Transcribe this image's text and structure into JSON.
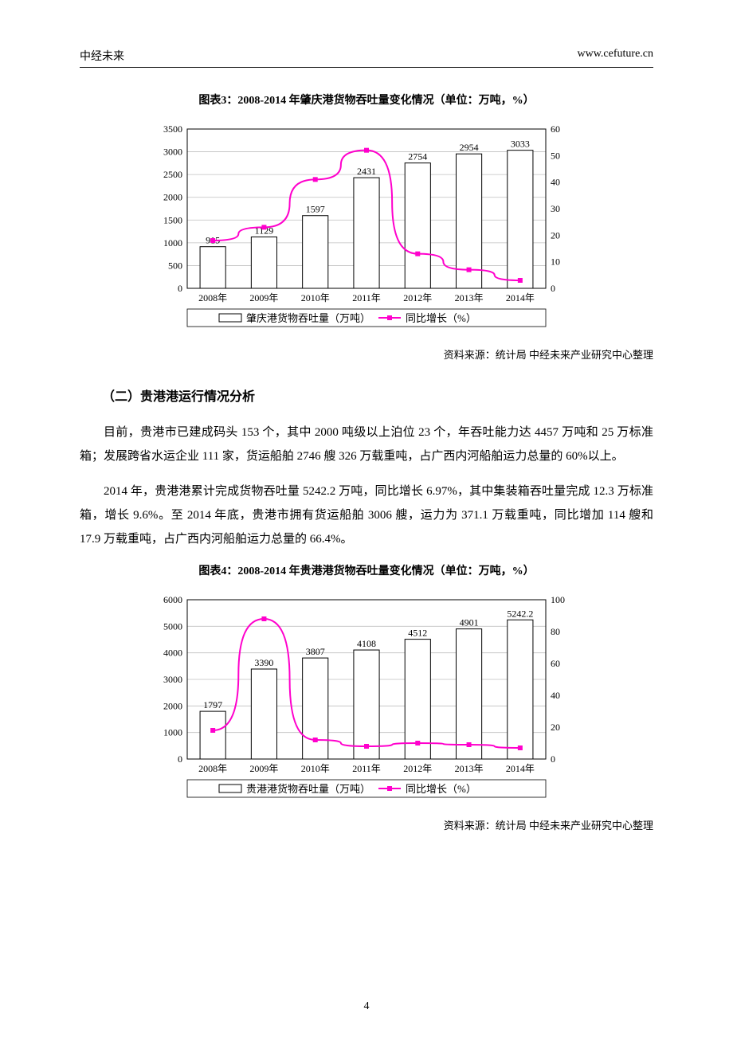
{
  "header": {
    "left": "中经未来",
    "right": "www.cefuture.cn"
  },
  "chart3": {
    "title": "图表3：2008-2014 年肇庆港货物吞吐量变化情况（单位：万吨，%）",
    "type": "bar+line",
    "categories": [
      "2008年",
      "2009年",
      "2010年",
      "2011年",
      "2012年",
      "2013年",
      "2014年"
    ],
    "bar_values": [
      915,
      1129,
      1597,
      2431,
      2754,
      2954,
      3033
    ],
    "line_values": [
      18,
      23,
      41,
      52,
      13,
      7,
      3
    ],
    "left_ylim": [
      0,
      3500
    ],
    "left_ytick_step": 500,
    "right_ylim": [
      0,
      60
    ],
    "right_ytick_step": 10,
    "bar_fill": "#ffffff",
    "bar_stroke": "#000000",
    "line_color": "#ff00cc",
    "grid_color": "#bfbfbf",
    "legend_bar": "肇庆港货物吞吐量（万吨）",
    "legend_line": "同比增长（%）",
    "source": "资料来源：统计局 中经未来产业研究中心整理"
  },
  "section_heading": "（二）贵港港运行情况分析",
  "para1": "目前，贵港市已建成码头 153 个，其中 2000 吨级以上泊位 23 个，年吞吐能力达 4457 万吨和 25 万标准箱；发展跨省水运企业 111 家，货运船舶 2746 艘 326 万载重吨，占广西内河船舶运力总量的 60%以上。",
  "para2": "2014 年，贵港港累计完成货物吞吐量 5242.2 万吨，同比增长 6.97%，其中集装箱吞吐量完成 12.3 万标准箱，增长 9.6%。至 2014 年底，贵港市拥有货运船舶 3006 艘，运力为 371.1 万载重吨，同比增加 114 艘和 17.9 万载重吨，占广西内河船舶运力总量的 66.4%。",
  "chart4": {
    "title": "图表4：2008-2014 年贵港港货物吞吐量变化情况（单位：万吨，%）",
    "type": "bar+line",
    "categories": [
      "2008年",
      "2009年",
      "2010年",
      "2011年",
      "2012年",
      "2013年",
      "2014年"
    ],
    "bar_values": [
      1797,
      3390,
      3807,
      4108,
      4512,
      4901,
      5242.2
    ],
    "line_values": [
      18,
      88,
      12,
      8,
      10,
      9,
      7
    ],
    "left_ylim": [
      0,
      6000
    ],
    "left_ytick_step": 1000,
    "right_ylim": [
      0,
      100
    ],
    "right_ytick_step": 20,
    "bar_fill": "#ffffff",
    "bar_stroke": "#000000",
    "line_color": "#ff00cc",
    "grid_color": "#bfbfbf",
    "legend_bar": "贵港港货物吞吐量（万吨）",
    "legend_line": "同比增长（%）",
    "source": "资料来源：统计局 中经未来产业研究中心整理"
  },
  "page_number": "4"
}
